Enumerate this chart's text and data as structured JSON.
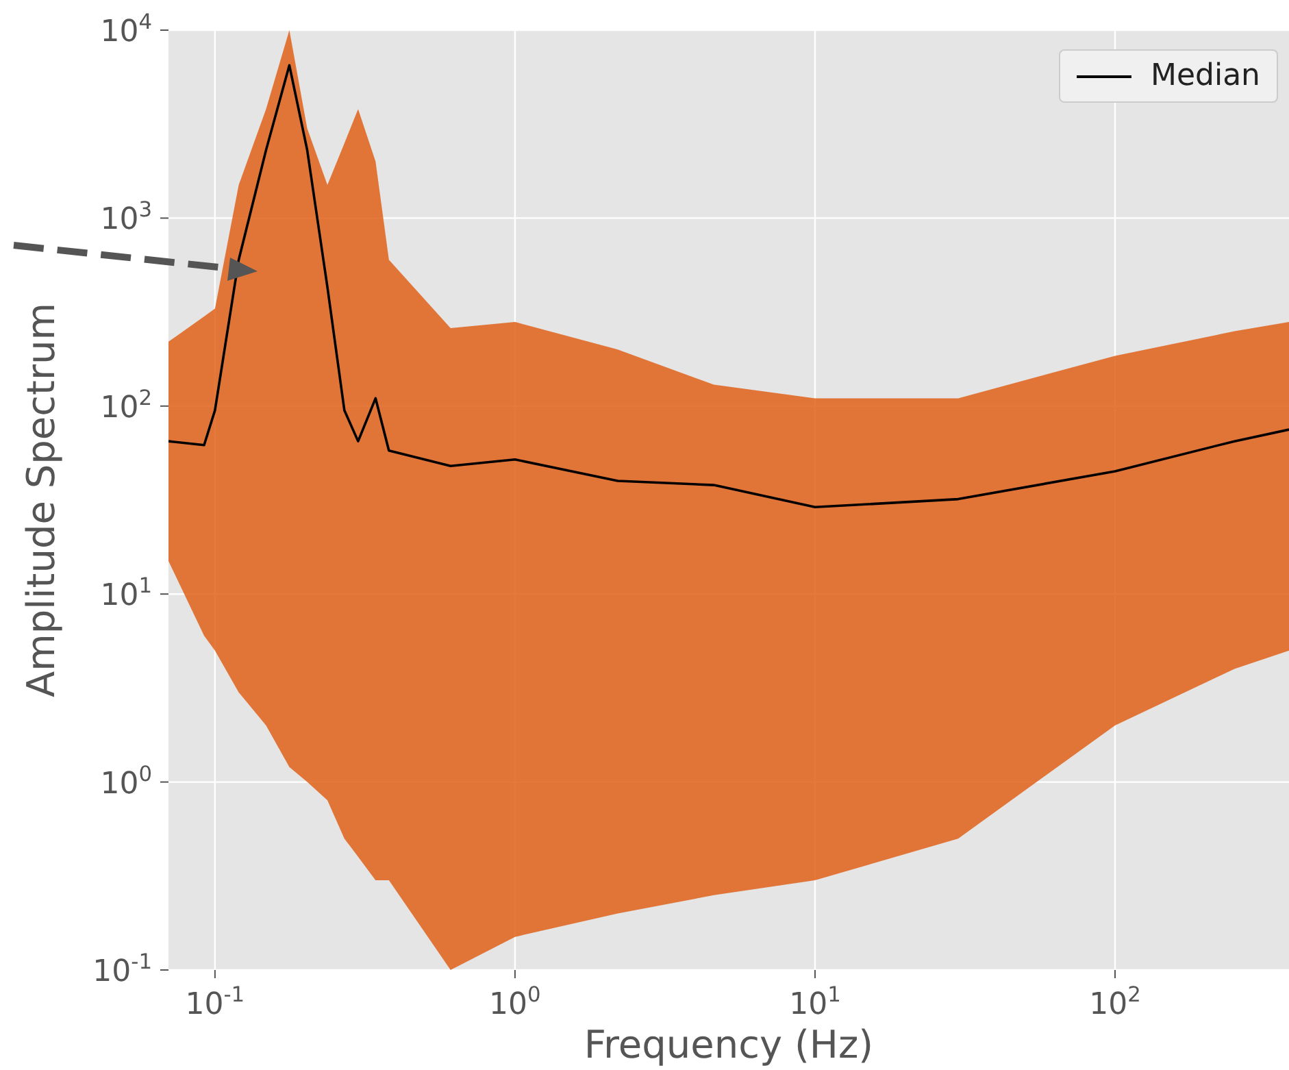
{
  "chart_data": {
    "type": "line",
    "xlabel": "Frequency (Hz)",
    "ylabel": "Amplitude Spectrum",
    "x": [
      0.07,
      0.092,
      0.1,
      0.12,
      0.148,
      0.177,
      0.203,
      0.237,
      0.27,
      0.3,
      0.343,
      0.38,
      0.61,
      1,
      2.2,
      4.6,
      10,
      30,
      100,
      250,
      380
    ],
    "series": [
      {
        "name": "Median",
        "color": "#000000",
        "values": [
          65,
          62,
          95,
          600,
          2300,
          6500,
          2300,
          430,
          95,
          65,
          110,
          58,
          48,
          52,
          40,
          38,
          29,
          32,
          45,
          65,
          75
        ],
        "lower": [
          15,
          6,
          5,
          3,
          2,
          1.2,
          1,
          0.8,
          0.5,
          0.4,
          0.3,
          0.3,
          0.1,
          0.15,
          0.2,
          0.25,
          0.3,
          0.5,
          2,
          4,
          5
        ],
        "upper": [
          220,
          300,
          330,
          1500,
          3800,
          10000,
          3000,
          1500,
          2500,
          3800,
          2000,
          600,
          260,
          280,
          200,
          130,
          110,
          110,
          185,
          250,
          280
        ]
      }
    ],
    "log": "xy",
    "xlim": [
      0.07,
      380
    ],
    "ylim": [
      0.1,
      10000
    ],
    "xticks": [
      {
        "value": 0.1,
        "label": "10$^{-1}$"
      },
      {
        "value": 1,
        "label": "10$^{0}$"
      },
      {
        "value": 10,
        "label": "10$^{1}$"
      },
      {
        "value": 100,
        "label": "10$^{2}$"
      }
    ],
    "yticks": [
      {
        "value": 0.1,
        "label": "10$^{-1}$"
      },
      {
        "value": 1,
        "label": "10$^{0}$"
      },
      {
        "value": 10,
        "label": "10$^{1}$"
      },
      {
        "value": 100,
        "label": "10$^{2}$"
      },
      {
        "value": 1000,
        "label": "10$^{3}$"
      },
      {
        "value": 10000,
        "label": "10$^{4}$"
      }
    ],
    "grid": true,
    "legend": "top right",
    "line_style": "solid",
    "marker": "none"
  }
}
